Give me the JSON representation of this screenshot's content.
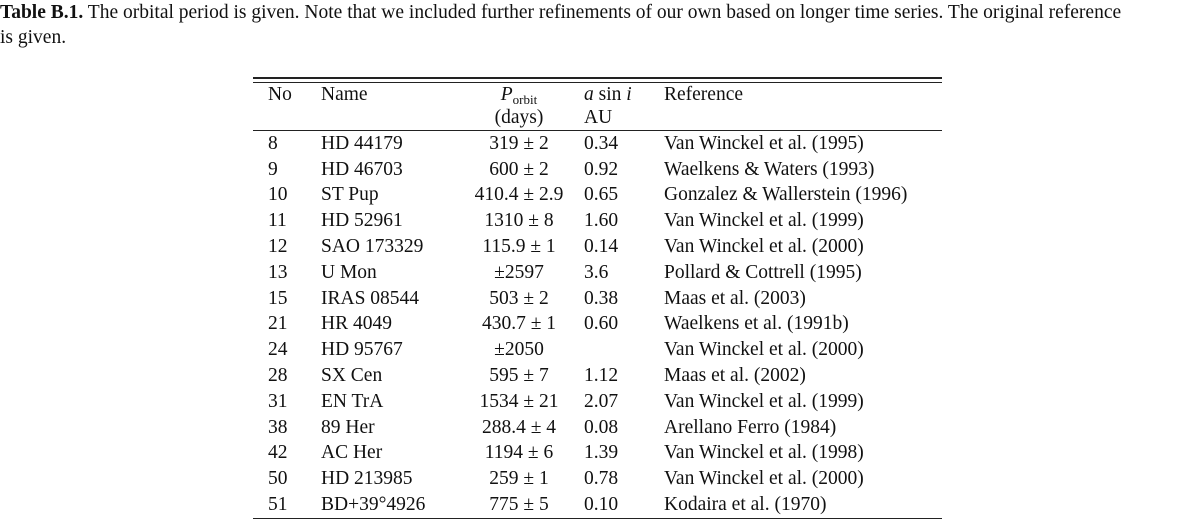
{
  "caption": {
    "label": "Table B.1.",
    "line1": "The orbital period is given. Note that we included further refinements of our own based on longer time series. The original reference",
    "line2": "is given."
  },
  "table": {
    "headers": {
      "no": "No",
      "name": "Name",
      "period_symbol": "P",
      "period_subscript": "orbit",
      "period_unit": "(days)",
      "asini_a": "a",
      "asini_sin": "sin",
      "asini_i": "i",
      "asini_unit": "AU",
      "reference": "Reference"
    },
    "rows": [
      {
        "no": "8",
        "name": "HD 44179",
        "period": "319 ± 2",
        "asini": "0.34",
        "reference": "Van Winckel et al. (1995)"
      },
      {
        "no": "9",
        "name": "HD 46703",
        "period": "600 ± 2",
        "asini": "0.92",
        "reference": "Waelkens & Waters (1993)"
      },
      {
        "no": "10",
        "name": "ST Pup",
        "period": "410.4 ± 2.9",
        "asini": "0.65",
        "reference": "Gonzalez & Wallerstein (1996)"
      },
      {
        "no": "11",
        "name": "HD 52961",
        "period": "1310 ± 8",
        "asini": "1.60",
        "reference": "Van Winckel et al. (1999)"
      },
      {
        "no": "12",
        "name": "SAO 173329",
        "period": "115.9 ± 1",
        "asini": "0.14",
        "reference": "Van Winckel et al. (2000)"
      },
      {
        "no": "13",
        "name": "U Mon",
        "period": "±2597",
        "asini": "3.6",
        "reference": "Pollard & Cottrell (1995)"
      },
      {
        "no": "15",
        "name": "IRAS 08544",
        "period": "503 ± 2",
        "asini": "0.38",
        "reference": "Maas et al. (2003)"
      },
      {
        "no": "21",
        "name": "HR 4049",
        "period": "430.7 ± 1",
        "asini": "0.60",
        "reference": "Waelkens et al. (1991b)"
      },
      {
        "no": "24",
        "name": "HD 95767",
        "period": "±2050",
        "asini": "",
        "reference": "Van Winckel et al. (2000)"
      },
      {
        "no": "28",
        "name": "SX Cen",
        "period": "595 ± 7",
        "asini": "1.12",
        "reference": "Maas et al. (2002)"
      },
      {
        "no": "31",
        "name": "EN TrA",
        "period": "1534 ± 21",
        "asini": "2.07",
        "reference": "Van Winckel et al. (1999)"
      },
      {
        "no": "38",
        "name": "89 Her",
        "period": "288.4 ± 4",
        "asini": "0.08",
        "reference": "Arellano Ferro (1984)"
      },
      {
        "no": "42",
        "name": "AC Her",
        "period": "1194 ± 6",
        "asini": "1.39",
        "reference": "Van Winckel et al. (1998)"
      },
      {
        "no": "50",
        "name": "HD 213985",
        "period": "259 ± 1",
        "asini": "0.78",
        "reference": "Van Winckel et al. (2000)"
      },
      {
        "no": "51",
        "name": "BD+39°4926",
        "period": "775 ± 5",
        "asini": "0.10",
        "reference": "Kodaira et al. (1970)"
      }
    ]
  }
}
